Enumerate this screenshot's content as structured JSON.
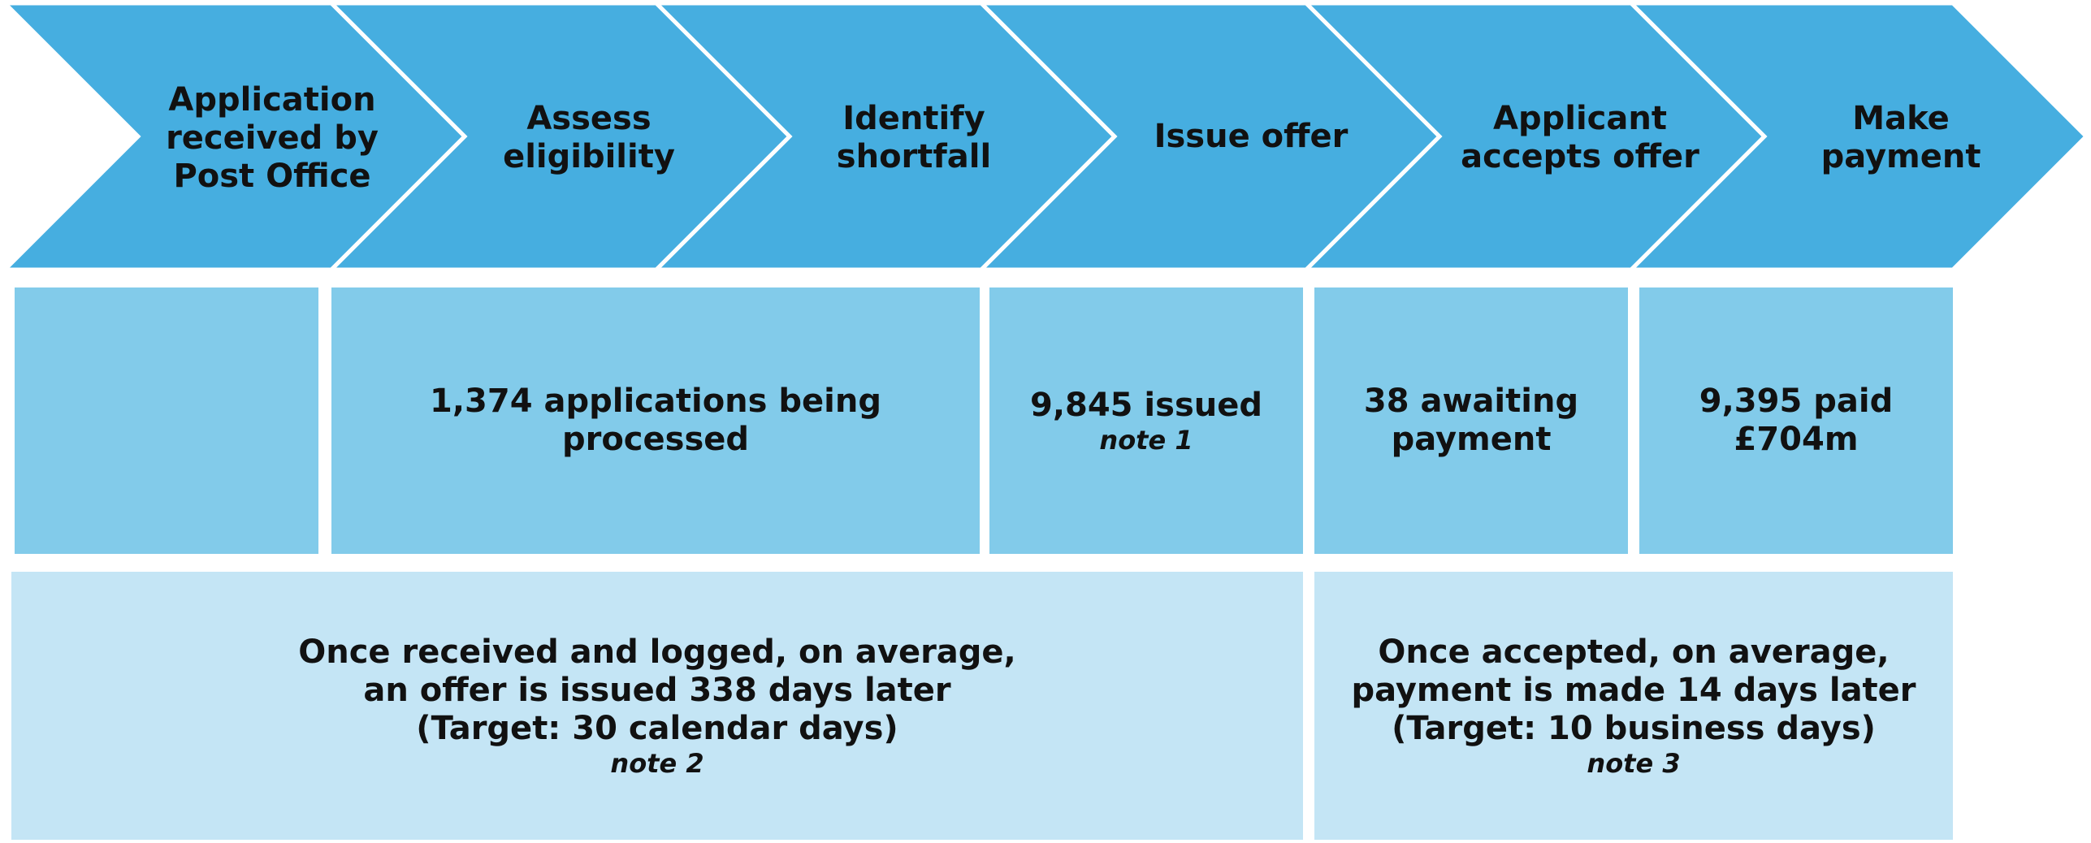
{
  "colors": {
    "chevron_fill": "#46aee0",
    "chevron_stroke": "#ffffff",
    "middle_box": "#82cbea",
    "bottom_box": "#c4e5f5"
  },
  "stages": [
    {
      "label": "Application\nreceived by\nPost Office"
    },
    {
      "label": "Assess\neligibility"
    },
    {
      "label": "Identify\nshortfall"
    },
    {
      "label": "Issue offer"
    },
    {
      "label": "Applicant\naccepts offer"
    },
    {
      "label": "Make\npayment"
    }
  ],
  "status_boxes": [
    {
      "text": ""
    },
    {
      "text": "1,374 applications being\nprocessed"
    },
    {
      "text": "9,845 issued",
      "note": "note 1"
    },
    {
      "text": "38 awaiting\npayment"
    },
    {
      "text": "9,395 paid\n£704m"
    }
  ],
  "timing_boxes": [
    {
      "text": "Once received and logged, on average,\nan offer is issued 338 days later\n(Target: 30 calendar days)",
      "note": "note 2"
    },
    {
      "text": "Once accepted, on average,\npayment is made 14 days later\n(Target: 10 business days)",
      "note": "note 3"
    }
  ]
}
